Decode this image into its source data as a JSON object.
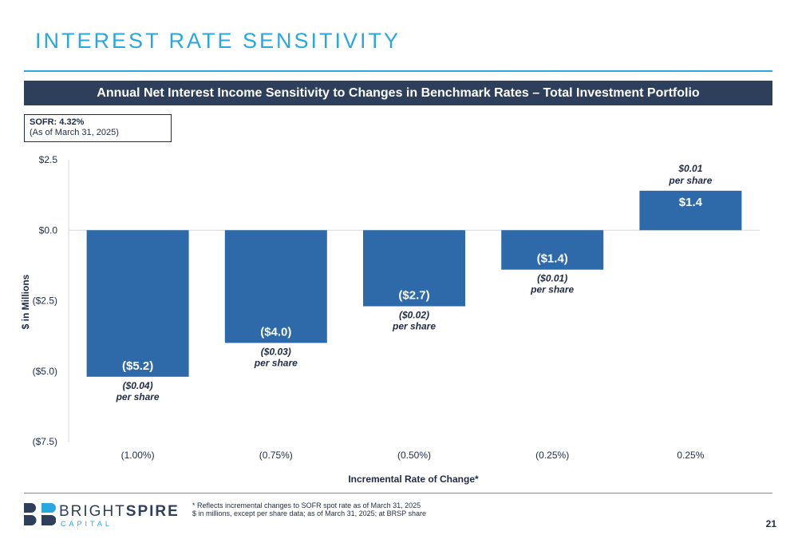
{
  "page": {
    "title": "INTEREST RATE SENSITIVITY",
    "banner": "Annual Net Interest Income Sensitivity to Changes in Benchmark Rates – Total Investment Portfolio",
    "sofr_rate": "SOFR: 4.32%",
    "sofr_asof": "(As of March 31, 2025)",
    "footnote_1": "* Reflects incremental changes to SOFR spot rate as of March 31, 2025",
    "footnote_2": "$ in millions, except per share data; as of March 31, 2025; at BRSP share",
    "page_number": "21"
  },
  "logo": {
    "word_light": "BRIGHT",
    "word_bold": "SPIRE",
    "sub": "CAPITAL"
  },
  "colors": {
    "accent": "#2aa7df",
    "banner": "#2e3f5c",
    "bar": "#2e6aa9",
    "text": "#1f2a44"
  },
  "chart_data": {
    "type": "bar",
    "xlabel": "Incremental Rate of Change*",
    "ylabel": "$ in Millions",
    "ylim": [
      -7.5,
      2.5
    ],
    "yticks": [
      2.5,
      0.0,
      -2.5,
      -5.0,
      -7.5
    ],
    "ytick_labels": [
      "$2.5",
      "$0.0",
      "($2.5)",
      "($5.0)",
      "($7.5)"
    ],
    "categories": [
      "(1.00%)",
      "(0.75%)",
      "(0.50%)",
      "(0.25%)",
      "0.25%"
    ],
    "values": [
      -5.2,
      -4.0,
      -2.7,
      -1.4,
      1.4
    ],
    "value_labels": [
      "($5.2)",
      "($4.0)",
      "($2.7)",
      "($1.4)",
      "$1.4"
    ],
    "per_share_values": [
      "($0.04)",
      "($0.03)",
      "($0.02)",
      "($0.01)",
      "$0.01"
    ],
    "per_share_suffix": "per share",
    "grid": false
  }
}
